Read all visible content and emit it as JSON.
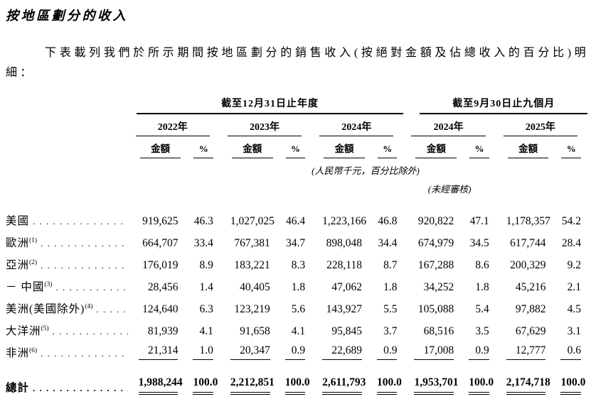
{
  "document": {
    "title": "按地區劃分的收入",
    "intro": "下表載列我們於所示期間按地區劃分的銷售收入(按絕對金額及佔總收入的百分比)明細："
  },
  "table": {
    "groups": [
      {
        "label": "截至12月31日止年度"
      },
      {
        "label": "截至9月30日止九個月"
      }
    ],
    "periods": [
      {
        "year": "2022年",
        "amount_label": "金額",
        "pct_label": "%"
      },
      {
        "year": "2023年",
        "amount_label": "金額",
        "pct_label": "%"
      },
      {
        "year": "2024年",
        "amount_label": "金額",
        "pct_label": "%"
      },
      {
        "year": "2024年",
        "amount_label": "金額",
        "pct_label": "%"
      },
      {
        "year": "2025年",
        "amount_label": "金額",
        "pct_label": "%"
      }
    ],
    "notes": {
      "currency": "(人民幣千元，百分比除外)",
      "unaudited": "(未經審核)"
    },
    "rows": [
      {
        "label": "美國",
        "note": "",
        "values": [
          "919,625",
          "46.3",
          "1,027,025",
          "46.4",
          "1,223,166",
          "46.8",
          "920,822",
          "47.1",
          "1,178,357",
          "54.2"
        ]
      },
      {
        "label": "歐洲",
        "note": "(1)",
        "values": [
          "664,707",
          "33.4",
          "767,381",
          "34.7",
          "898,048",
          "34.4",
          "674,979",
          "34.5",
          "617,744",
          "28.4"
        ]
      },
      {
        "label": "亞洲",
        "note": "(2)",
        "values": [
          "176,019",
          "8.9",
          "183,221",
          "8.3",
          "228,118",
          "8.7",
          "167,288",
          "8.6",
          "200,329",
          "9.2"
        ]
      },
      {
        "label": "－ 中國",
        "note": "(3)",
        "values": [
          "28,456",
          "1.4",
          "40,405",
          "1.8",
          "47,062",
          "1.8",
          "34,252",
          "1.8",
          "45,216",
          "2.1"
        ]
      },
      {
        "label": "美洲(美國除外)",
        "note": "(4)",
        "values": [
          "124,640",
          "6.3",
          "123,219",
          "5.6",
          "143,927",
          "5.5",
          "105,088",
          "5.4",
          "97,882",
          "4.5"
        ]
      },
      {
        "label": "大洋洲",
        "note": "(5)",
        "values": [
          "81,939",
          "4.1",
          "91,658",
          "4.1",
          "95,845",
          "3.7",
          "68,516",
          "3.5",
          "67,629",
          "3.1"
        ]
      },
      {
        "label": "非洲",
        "note": "(6)",
        "values": [
          "21,314",
          "1.0",
          "20,347",
          "0.9",
          "22,689",
          "0.9",
          "17,008",
          "0.9",
          "12,777",
          "0.6"
        ]
      }
    ],
    "total": {
      "label": "總計",
      "values": [
        "1,988,244",
        "100.0",
        "2,212,851",
        "100.0",
        "2,611,793",
        "100.0",
        "1,953,701",
        "100.0",
        "2,174,718",
        "100.0"
      ]
    }
  }
}
